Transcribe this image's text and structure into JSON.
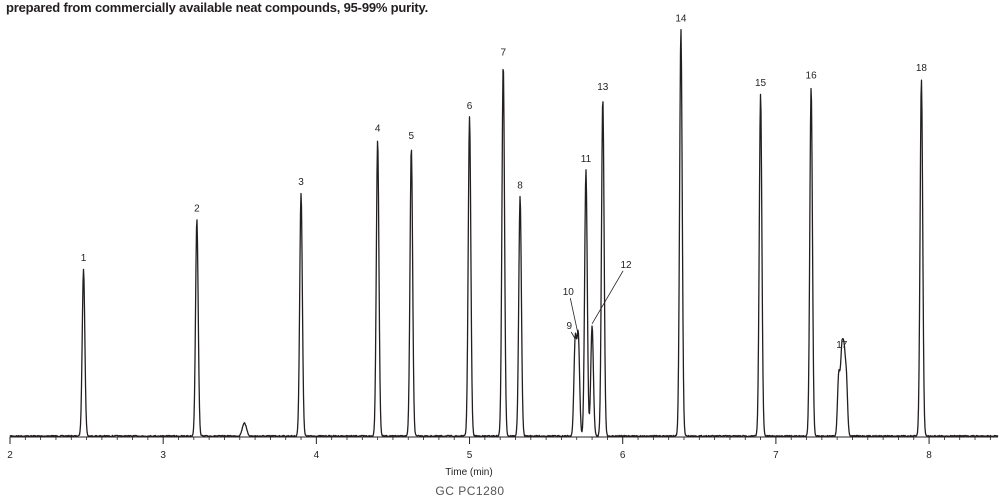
{
  "caption": "prepared from commercially available neat compounds, 95-99% purity.",
  "footer_code": "GC  PC1280",
  "chart_data": {
    "type": "line",
    "title": "",
    "xlabel": "Time (min)",
    "ylabel": "",
    "xlim": [
      2.0,
      8.45
    ],
    "x_ticks": [
      2,
      3,
      4,
      5,
      6,
      7,
      8
    ],
    "x_tick_labels": [
      "2",
      "3",
      "4",
      "5",
      "6",
      "7",
      "8"
    ],
    "grid": false,
    "line_color": "#231f20",
    "peaks": [
      {
        "label": "1",
        "rt": 2.48,
        "height": 0.44
      },
      {
        "label": "2",
        "rt": 3.22,
        "height": 0.57
      },
      {
        "label": "3",
        "rt": 3.9,
        "height": 0.64
      },
      {
        "label": "4",
        "rt": 4.4,
        "height": 0.78
      },
      {
        "label": "5",
        "rt": 4.62,
        "height": 0.76
      },
      {
        "label": "6",
        "rt": 5.0,
        "height": 0.84
      },
      {
        "label": "7",
        "rt": 5.22,
        "height": 0.98
      },
      {
        "label": "8",
        "rt": 5.33,
        "height": 0.63
      },
      {
        "label": "9",
        "rt": 5.69,
        "height": 0.25
      },
      {
        "label": "10",
        "rt": 5.71,
        "height": 0.26
      },
      {
        "label": "11",
        "rt": 5.76,
        "height": 0.7
      },
      {
        "label": "12",
        "rt": 5.8,
        "height": 0.29
      },
      {
        "label": "13",
        "rt": 5.87,
        "height": 0.89
      },
      {
        "label": "14",
        "rt": 6.38,
        "height": 1.07
      },
      {
        "label": "15",
        "rt": 6.9,
        "height": 0.9
      },
      {
        "label": "16",
        "rt": 7.23,
        "height": 0.92
      },
      {
        "label": "17",
        "rt": 7.43,
        "height": 0.21
      },
      {
        "label": "18",
        "rt": 7.95,
        "height": 0.94
      }
    ],
    "minor_peaks": [
      {
        "rt": 3.53,
        "height": 0.035
      }
    ]
  }
}
